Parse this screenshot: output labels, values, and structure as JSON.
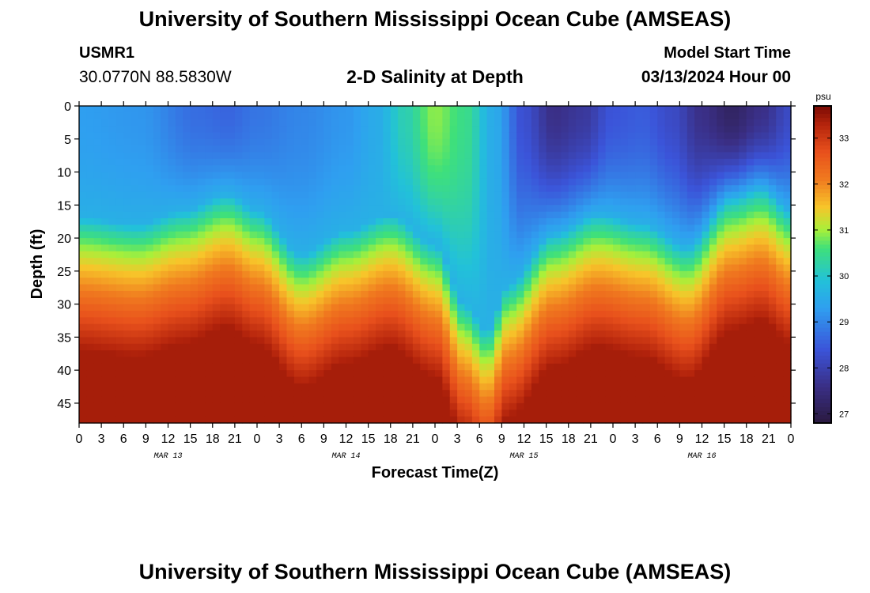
{
  "header": {
    "title": "University of Southern Mississippi Ocean Cube (AMSEAS)",
    "station_id": "USMR1",
    "coordinates": "30.0770N  88.5830W",
    "plot_title": "2-D Salinity at Depth",
    "model_start_label": "Model Start Time",
    "model_start_value": "03/13/2024 Hour 00"
  },
  "footer": {
    "title": "University of Southern Mississippi Ocean Cube (AMSEAS)"
  },
  "colors": {
    "min": "#2a1a40",
    "low": "#3b54d9",
    "mid": "#22c1d9",
    "green": "#a8f03a",
    "high": "#e8501c",
    "max": "#7a0a04"
  },
  "chart_data": {
    "type": "heatmap",
    "title": "2-D Salinity at Depth",
    "xlabel": "Forecast Time(Z)",
    "ylabel": "Depth (ft)",
    "x_hours": [
      0,
      96
    ],
    "x_ticks": [
      "0",
      "3",
      "6",
      "9",
      "12",
      "15",
      "18",
      "21",
      "0",
      "3",
      "6",
      "9",
      "12",
      "15",
      "18",
      "21",
      "0",
      "3",
      "6",
      "9",
      "12",
      "15",
      "18",
      "21",
      "0",
      "3",
      "6",
      "9",
      "12",
      "15",
      "18",
      "21",
      "0"
    ],
    "date_labels": [
      {
        "label": "MAR 13",
        "hour": 12
      },
      {
        "label": "MAR 14",
        "hour": 36
      },
      {
        "label": "MAR 15",
        "hour": 60
      },
      {
        "label": "MAR 16",
        "hour": 84
      }
    ],
    "ylim": [
      0,
      48
    ],
    "y_ticks": [
      0,
      5,
      10,
      15,
      20,
      25,
      30,
      35,
      40,
      45
    ],
    "colorbar": {
      "label": "psu",
      "range": [
        26.8,
        33.7
      ],
      "ticks": [
        27,
        28,
        29,
        30,
        31,
        32,
        33
      ]
    },
    "surface_salinity_by_hour": [
      [
        0,
        29.3
      ],
      [
        8,
        29.2
      ],
      [
        16,
        28.7
      ],
      [
        20,
        28.6
      ],
      [
        24,
        28.8
      ],
      [
        30,
        29.0
      ],
      [
        36,
        29.2
      ],
      [
        40,
        29.5
      ],
      [
        44,
        30.2
      ],
      [
        48,
        30.9
      ],
      [
        52,
        30.5
      ],
      [
        56,
        29.5
      ],
      [
        60,
        28.3
      ],
      [
        64,
        27.6
      ],
      [
        68,
        27.8
      ],
      [
        72,
        28.4
      ],
      [
        76,
        28.5
      ],
      [
        80,
        28.2
      ],
      [
        84,
        27.6
      ],
      [
        88,
        27.2
      ],
      [
        92,
        27.6
      ],
      [
        96,
        28.2
      ]
    ],
    "halocline_depth_ft_by_hour": [
      [
        0,
        23.0
      ],
      [
        8,
        24.0
      ],
      [
        14,
        22.0
      ],
      [
        20,
        19.5
      ],
      [
        24,
        22.0
      ],
      [
        30,
        28.5
      ],
      [
        36,
        25.0
      ],
      [
        42,
        22.5
      ],
      [
        48,
        27.0
      ],
      [
        52,
        36.0
      ],
      [
        55,
        40.0
      ],
      [
        58,
        33.0
      ],
      [
        64,
        25.5
      ],
      [
        70,
        22.5
      ],
      [
        76,
        24.0
      ],
      [
        82,
        27.5
      ],
      [
        88,
        20.0
      ],
      [
        92,
        18.5
      ],
      [
        96,
        22.0
      ]
    ],
    "deep_salinity": 33.4
  }
}
